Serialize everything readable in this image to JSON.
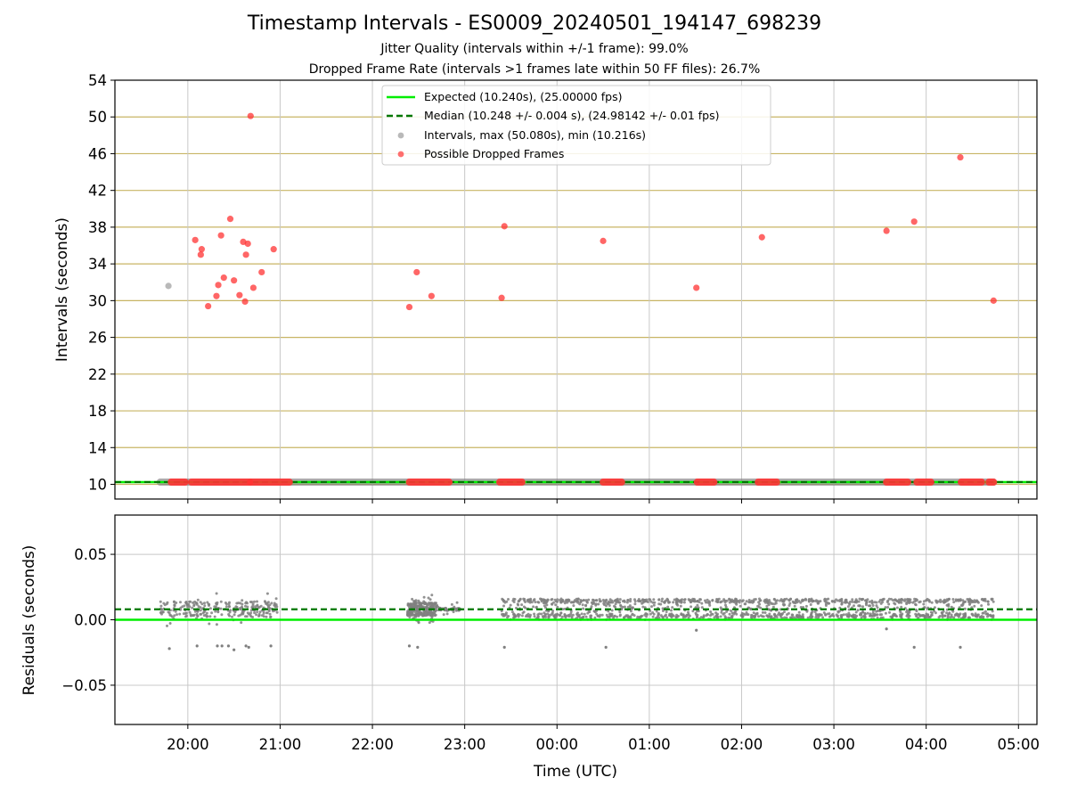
{
  "chart_data": [
    {
      "type": "scatter",
      "title": "Timestamp Intervals - ES0009_20240501_194147_698239",
      "subtitles": [
        "Jitter Quality (intervals within +/-1 frame): 99.0%",
        "Dropped Frame Rate (intervals >1 frames late within 50 FF files): 26.7%"
      ],
      "ylabel": "Intervals (seconds)",
      "xlabel": "",
      "ylim": [
        8.4,
        54
      ],
      "yticks": [
        10,
        14,
        18,
        22,
        26,
        30,
        34,
        38,
        42,
        46,
        50,
        54
      ],
      "ytick_labels": [
        "10",
        "14",
        "18",
        "22",
        "26",
        "30",
        "34",
        "38",
        "42",
        "46",
        "50",
        "54"
      ],
      "x_axis": "time (UTC, hours since 19:00 on the left of the axis)",
      "xlim_hours": [
        19.21,
        29.2
      ],
      "grid": true,
      "gold_hgrid": true,
      "legend": {
        "placement": "top-center",
        "entries": [
          "Expected (10.240s), (25.00000 fps)",
          "Median (10.248 +/- 0.004 s), (24.98142 +/- 0.01 fps)",
          "Intervals, max (50.080s), min (10.216s)",
          "Possible Dropped Frames"
        ]
      },
      "expected_interval": 10.24,
      "median_interval": 10.248,
      "intervals_band": {
        "value": 10.24,
        "segments": [
          [
            19.7,
            28.73
          ]
        ]
      },
      "dropped_band_segments": [
        [
          19.82,
          19.97
        ],
        [
          20.04,
          20.67
        ],
        [
          20.68,
          21.1
        ],
        [
          22.4,
          22.83
        ],
        [
          23.38,
          23.62
        ],
        [
          24.5,
          24.7
        ],
        [
          25.52,
          25.7
        ],
        [
          26.18,
          26.38
        ],
        [
          27.57,
          27.8
        ],
        [
          27.9,
          28.05
        ],
        [
          28.38,
          28.6
        ],
        [
          28.68,
          28.73
        ]
      ],
      "gray_points": [
        {
          "t": 19.79,
          "y": 31.6
        }
      ],
      "dropped_points": [
        {
          "t": 20.08,
          "y": 36.6
        },
        {
          "t": 20.14,
          "y": 35.0
        },
        {
          "t": 20.15,
          "y": 35.6
        },
        {
          "t": 20.22,
          "y": 29.4
        },
        {
          "t": 20.31,
          "y": 30.5
        },
        {
          "t": 20.33,
          "y": 31.7
        },
        {
          "t": 20.36,
          "y": 37.1
        },
        {
          "t": 20.39,
          "y": 32.5
        },
        {
          "t": 20.46,
          "y": 38.9
        },
        {
          "t": 20.5,
          "y": 32.2
        },
        {
          "t": 20.56,
          "y": 30.6
        },
        {
          "t": 20.6,
          "y": 36.4
        },
        {
          "t": 20.62,
          "y": 29.9
        },
        {
          "t": 20.63,
          "y": 35.0
        },
        {
          "t": 20.65,
          "y": 36.2
        },
        {
          "t": 20.68,
          "y": 50.1
        },
        {
          "t": 20.71,
          "y": 31.4
        },
        {
          "t": 20.8,
          "y": 33.1
        },
        {
          "t": 20.93,
          "y": 35.6
        },
        {
          "t": 22.4,
          "y": 29.3
        },
        {
          "t": 22.48,
          "y": 33.1
        },
        {
          "t": 22.64,
          "y": 30.5
        },
        {
          "t": 23.4,
          "y": 30.3
        },
        {
          "t": 23.43,
          "y": 38.1
        },
        {
          "t": 24.5,
          "y": 36.5
        },
        {
          "t": 25.51,
          "y": 31.4
        },
        {
          "t": 26.22,
          "y": 36.9
        },
        {
          "t": 27.57,
          "y": 37.6
        },
        {
          "t": 27.87,
          "y": 38.6
        },
        {
          "t": 28.37,
          "y": 45.6
        },
        {
          "t": 28.73,
          "y": 30.0
        }
      ]
    },
    {
      "type": "scatter",
      "ylabel": "Residuals (seconds)",
      "xlabel": "Time (UTC)",
      "ylim": [
        -0.08,
        0.08
      ],
      "yticks": [
        0.05,
        0.0,
        -0.05
      ],
      "ytick_labels": [
        "0.05",
        "0.00",
        "−0.05"
      ],
      "xticks_hours": [
        20,
        21,
        22,
        23,
        24,
        25,
        26,
        27,
        28,
        29
      ],
      "xtick_labels": [
        "20:00",
        "21:00",
        "22:00",
        "23:00",
        "00:00",
        "01:00",
        "02:00",
        "03:00",
        "04:00",
        "05:00"
      ],
      "xlim_hours": [
        19.21,
        29.2
      ],
      "grid": true,
      "expected_residual": 0.0,
      "median_residual": 0.008,
      "residual_clusters": [
        {
          "start": 19.7,
          "end": 20.97,
          "center": 0.008,
          "spread": 0.006,
          "outer": 0.019,
          "density": "medium"
        },
        {
          "start": 22.38,
          "end": 22.7,
          "center": 0.008,
          "spread": 0.005,
          "outer": 0.017,
          "density": "medium"
        },
        {
          "start": 22.7,
          "end": 22.95,
          "center": 0.008,
          "spread": 0.001,
          "outer": 0.0,
          "density": "low"
        },
        {
          "start": 23.4,
          "end": 28.73,
          "center": 0.008,
          "spread": 0.008,
          "outer": 0.016,
          "density": "high"
        }
      ],
      "negative_outliers": [
        {
          "t": 19.8,
          "y": -0.022
        },
        {
          "t": 20.1,
          "y": -0.02
        },
        {
          "t": 20.32,
          "y": -0.02
        },
        {
          "t": 20.37,
          "y": -0.02
        },
        {
          "t": 20.44,
          "y": -0.02
        },
        {
          "t": 20.5,
          "y": -0.023
        },
        {
          "t": 20.63,
          "y": -0.02
        },
        {
          "t": 20.66,
          "y": -0.021
        },
        {
          "t": 20.9,
          "y": -0.02
        },
        {
          "t": 22.4,
          "y": -0.02
        },
        {
          "t": 22.49,
          "y": -0.021
        },
        {
          "t": 23.43,
          "y": -0.021
        },
        {
          "t": 24.53,
          "y": -0.021
        },
        {
          "t": 25.51,
          "y": -0.008
        },
        {
          "t": 27.57,
          "y": -0.007
        },
        {
          "t": 27.87,
          "y": -0.021
        },
        {
          "t": 28.37,
          "y": -0.021
        }
      ]
    }
  ],
  "colors": {
    "expected": "#00ee00",
    "median": "#007700",
    "intervals": "#808080",
    "dropped": "#ff3333",
    "gold_grid": "#c8b464",
    "grid": "#c8c8c8"
  }
}
